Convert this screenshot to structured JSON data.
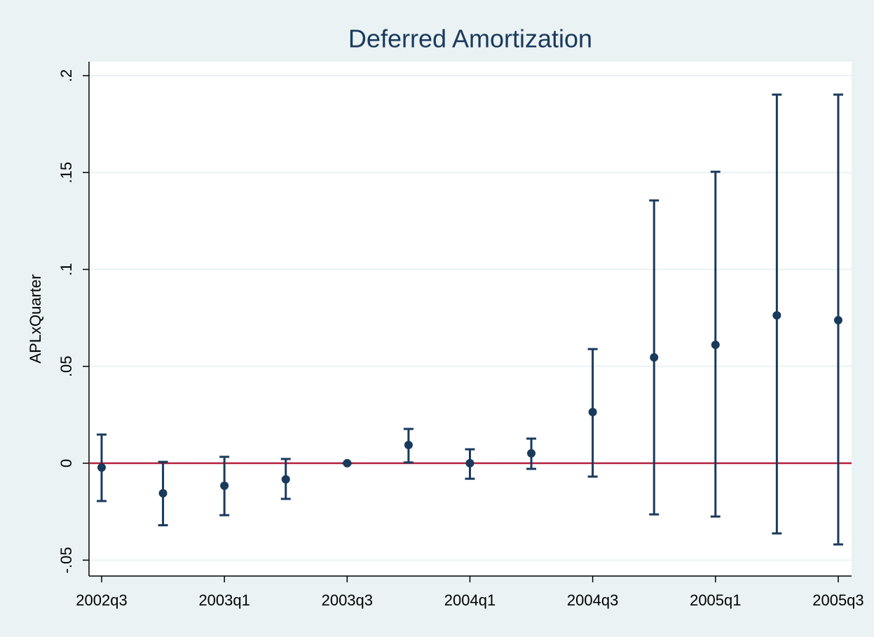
{
  "chart_data": {
    "type": "errorbar",
    "title": "Deferred Amortization",
    "y_label": "APLxQuarter",
    "categories": [
      "2002q3",
      null,
      "2003q1",
      null,
      "2003q3",
      null,
      "2004q1",
      null,
      "2004q3",
      null,
      "2005q1",
      null,
      "2005q3"
    ],
    "series": [
      {
        "color": "#1a3a5c",
        "values": [
          -0.0022,
          -0.0155,
          -0.0116,
          -0.0083,
          0.0,
          0.0094,
          0.0,
          0.0051,
          0.0264,
          0.0546,
          0.0611,
          0.0763,
          0.0738
        ],
        "lower": [
          -0.0195,
          -0.032,
          -0.0268,
          -0.0184,
          0.0,
          0.0004,
          -0.008,
          -0.0029,
          -0.0069,
          -0.0264,
          -0.0275,
          -0.0362,
          -0.0419
        ],
        "upper": [
          0.0148,
          0.0007,
          0.0033,
          0.0022,
          0.0,
          0.0177,
          0.0072,
          0.0127,
          0.0589,
          0.1356,
          0.1504,
          0.1902,
          0.1902
        ]
      }
    ],
    "reference_line": {
      "value": 0,
      "color": "#b41f3c"
    },
    "ylim": [
      -0.0582,
      0.2072
    ],
    "yticks": [
      {
        "value": -0.05,
        "label": "-.05"
      },
      0,
      {
        "value": 0.05,
        "label": ".05"
      },
      {
        "value": 0.1,
        "label": ".1"
      },
      {
        "value": 0.15,
        "label": ".15"
      },
      {
        "value": 0.2,
        "label": ".2"
      }
    ],
    "grid": true
  }
}
